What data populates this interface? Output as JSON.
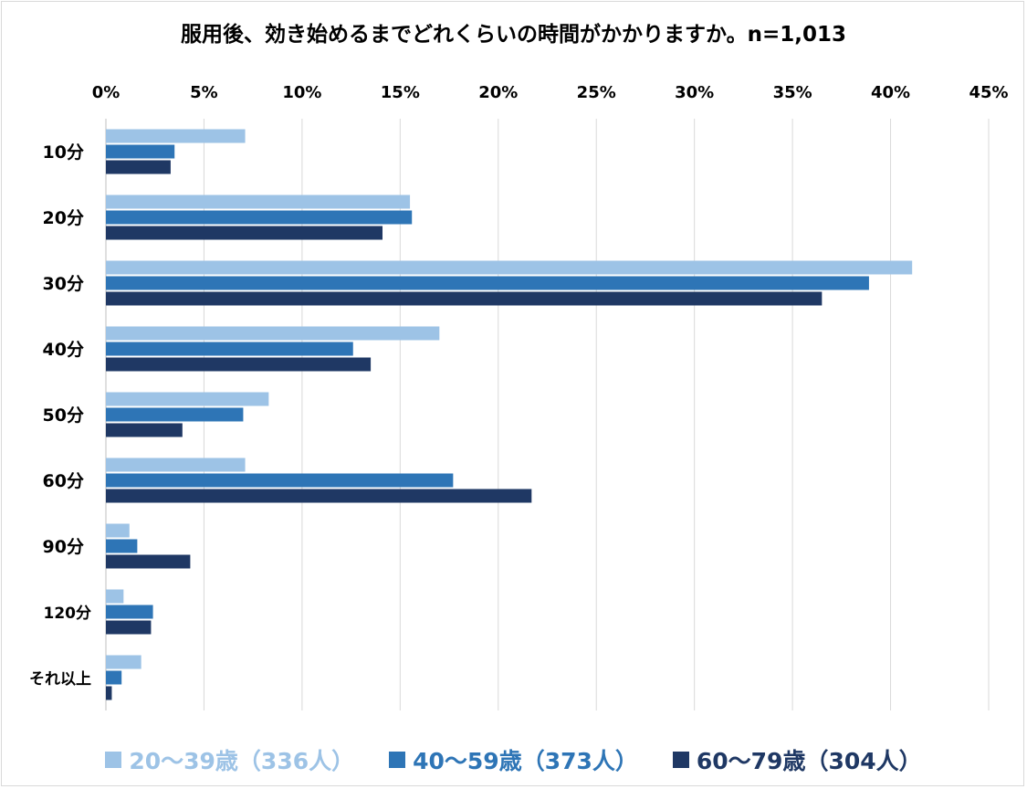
{
  "chart_data": {
    "type": "bar",
    "orientation": "horizontal",
    "title": "服用後、効き始めるまでどれくらいの時間がかかりますか。n=1,013",
    "categories": [
      "10分",
      "20分",
      "30分",
      "40分",
      "50分",
      "60分",
      "90分",
      "120分",
      "それ以上"
    ],
    "series": [
      {
        "name": "20〜39歳（336人）",
        "color": "#9dc3e6",
        "values": [
          7.1,
          15.5,
          41.1,
          17.0,
          8.3,
          7.1,
          1.2,
          0.9,
          1.8
        ]
      },
      {
        "name": "40〜59歳（373人）",
        "color": "#2e75b6",
        "values": [
          3.5,
          15.6,
          38.9,
          12.6,
          7.0,
          17.7,
          1.6,
          2.4,
          0.8
        ]
      },
      {
        "name": "60〜79歳（304人）",
        "color": "#1f3864",
        "values": [
          3.3,
          14.1,
          36.5,
          13.5,
          3.9,
          21.7,
          4.3,
          2.3,
          0.3
        ]
      }
    ],
    "xlim": [
      0,
      45
    ],
    "xticks": [
      "0%",
      "5%",
      "10%",
      "15%",
      "20%",
      "25%",
      "30%",
      "35%",
      "40%",
      "45%"
    ],
    "grid": true,
    "legend_position": "bottom"
  }
}
